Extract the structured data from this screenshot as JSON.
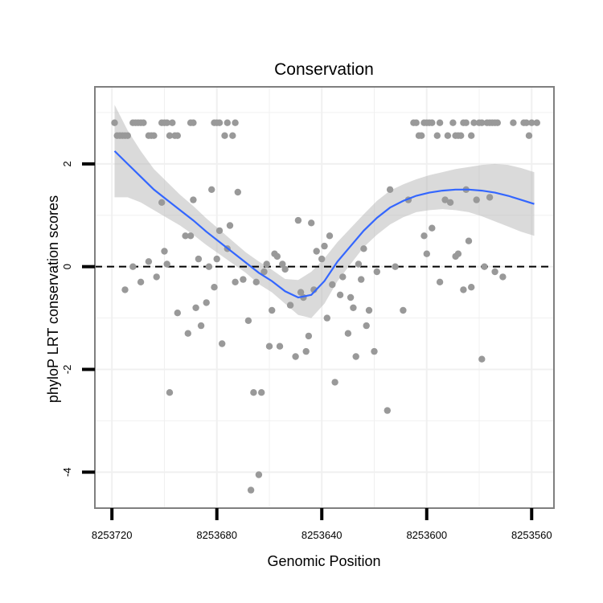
{
  "chart_data": {
    "type": "scatter",
    "title": "Conservation",
    "xlabel": "Genomic Position",
    "ylabel": "phyloP LRT conservation scores",
    "x_reversed": true,
    "xlim": [
      8253726.5,
      8253551.5
    ],
    "ylim": [
      -4.7,
      3.5
    ],
    "x_ticks": [
      8253720,
      8253680,
      8253640,
      8253600,
      8253560
    ],
    "x_tick_labels": [
      "8253720",
      "8253680",
      "8253640",
      "8253600",
      "8253560"
    ],
    "y_ticks": [
      -4,
      -2,
      0,
      2
    ],
    "y_tick_labels": [
      "-4",
      "-2",
      "0",
      "2"
    ],
    "grid": true,
    "reference_line": {
      "y": 0,
      "style": "dashed"
    },
    "colors": {
      "points": "#999999",
      "smooth_line": "#3366ff",
      "confidence_band": "#bbbbbb",
      "panel_border": "#7f7f7f",
      "grid": "#f0f0f0"
    },
    "series": [
      {
        "type": "scatter",
        "points": [
          [
            8253719,
            2.8
          ],
          [
            8253718,
            2.55
          ],
          [
            8253717,
            2.55
          ],
          [
            8253716,
            2.55
          ],
          [
            8253715,
            2.55
          ],
          [
            8253714,
            2.55
          ],
          [
            8253712,
            2.8
          ],
          [
            8253711,
            2.8
          ],
          [
            8253710,
            2.8
          ],
          [
            8253709,
            2.8
          ],
          [
            8253708,
            2.8
          ],
          [
            8253706,
            2.55
          ],
          [
            8253705,
            2.55
          ],
          [
            8253704,
            2.55
          ],
          [
            8253701,
            2.8
          ],
          [
            8253700,
            2.8
          ],
          [
            8253699,
            2.8
          ],
          [
            8253698,
            2.55
          ],
          [
            8253697,
            2.8
          ],
          [
            8253696,
            2.55
          ],
          [
            8253695,
            2.55
          ],
          [
            8253690,
            2.8
          ],
          [
            8253689,
            2.8
          ],
          [
            8253681,
            2.8
          ],
          [
            8253680,
            2.8
          ],
          [
            8253679,
            2.8
          ],
          [
            8253677,
            2.55
          ],
          [
            8253676,
            2.8
          ],
          [
            8253674,
            2.55
          ],
          [
            8253673,
            2.8
          ],
          [
            8253605,
            2.8
          ],
          [
            8253604,
            2.8
          ],
          [
            8253603,
            2.55
          ],
          [
            8253602,
            2.55
          ],
          [
            8253601,
            2.8
          ],
          [
            8253600,
            2.8
          ],
          [
            8253599,
            2.8
          ],
          [
            8253598,
            2.8
          ],
          [
            8253596,
            2.55
          ],
          [
            8253595,
            2.8
          ],
          [
            8253592,
            2.55
          ],
          [
            8253590,
            2.8
          ],
          [
            8253589,
            2.55
          ],
          [
            8253588,
            2.55
          ],
          [
            8253587,
            2.55
          ],
          [
            8253586,
            2.8
          ],
          [
            8253585,
            2.8
          ],
          [
            8253583,
            2.55
          ],
          [
            8253582,
            2.8
          ],
          [
            8253580,
            2.8
          ],
          [
            8253579,
            2.8
          ],
          [
            8253577,
            2.8
          ],
          [
            8253576,
            2.8
          ],
          [
            8253575,
            2.8
          ],
          [
            8253574,
            2.8
          ],
          [
            8253573,
            2.8
          ],
          [
            8253567,
            2.8
          ],
          [
            8253563,
            2.8
          ],
          [
            8253562,
            2.8
          ],
          [
            8253561,
            2.55
          ],
          [
            8253560,
            2.8
          ],
          [
            8253558,
            2.8
          ],
          [
            8253715,
            -0.45
          ],
          [
            8253712,
            0.0
          ],
          [
            8253709,
            -0.3
          ],
          [
            8253706,
            0.1
          ],
          [
            8253703,
            -0.2
          ],
          [
            8253701,
            1.25
          ],
          [
            8253700,
            0.3
          ],
          [
            8253699,
            0.05
          ],
          [
            8253698,
            -2.45
          ],
          [
            8253695,
            -0.9
          ],
          [
            8253692,
            0.6
          ],
          [
            8253691,
            -1.3
          ],
          [
            8253690,
            0.6
          ],
          [
            8253689,
            1.3
          ],
          [
            8253688,
            -0.8
          ],
          [
            8253687,
            0.15
          ],
          [
            8253686,
            -1.15
          ],
          [
            8253684,
            -0.7
          ],
          [
            8253683,
            0.0
          ],
          [
            8253682,
            1.5
          ],
          [
            8253681,
            -0.4
          ],
          [
            8253680,
            0.15
          ],
          [
            8253679,
            0.7
          ],
          [
            8253678,
            -1.5
          ],
          [
            8253676,
            0.35
          ],
          [
            8253675,
            0.8
          ],
          [
            8253673,
            -0.3
          ],
          [
            8253672,
            1.45
          ],
          [
            8253670,
            -0.25
          ],
          [
            8253668,
            -1.05
          ],
          [
            8253667,
            -4.35
          ],
          [
            8253666,
            -2.45
          ],
          [
            8253665,
            -0.3
          ],
          [
            8253664,
            -4.05
          ],
          [
            8253663,
            -2.45
          ],
          [
            8253662,
            -0.1
          ],
          [
            8253661,
            0.05
          ],
          [
            8253660,
            -1.55
          ],
          [
            8253659,
            -0.85
          ],
          [
            8253658,
            0.25
          ],
          [
            8253657,
            0.2
          ],
          [
            8253656,
            -1.55
          ],
          [
            8253655,
            0.05
          ],
          [
            8253654,
            -0.05
          ],
          [
            8253652,
            -0.75
          ],
          [
            8253650,
            -1.75
          ],
          [
            8253649,
            0.9
          ],
          [
            8253648,
            -0.5
          ],
          [
            8253647,
            -0.6
          ],
          [
            8253646,
            -1.65
          ],
          [
            8253645,
            -1.35
          ],
          [
            8253644,
            0.85
          ],
          [
            8253643,
            -0.45
          ],
          [
            8253642,
            0.3
          ],
          [
            8253640,
            0.15
          ],
          [
            8253639,
            0.4
          ],
          [
            8253638,
            -1.0
          ],
          [
            8253637,
            0.6
          ],
          [
            8253636,
            -0.35
          ],
          [
            8253635,
            -2.25
          ],
          [
            8253633,
            -0.55
          ],
          [
            8253632,
            -0.2
          ],
          [
            8253630,
            -1.3
          ],
          [
            8253629,
            -0.6
          ],
          [
            8253628,
            -0.8
          ],
          [
            8253627,
            -1.75
          ],
          [
            8253626,
            0.05
          ],
          [
            8253625,
            -0.25
          ],
          [
            8253624,
            0.35
          ],
          [
            8253623,
            -1.15
          ],
          [
            8253622,
            -0.85
          ],
          [
            8253620,
            -1.65
          ],
          [
            8253619,
            -0.1
          ],
          [
            8253615,
            -2.8
          ],
          [
            8253614,
            1.5
          ],
          [
            8253612,
            0.0
          ],
          [
            8253609,
            -0.85
          ],
          [
            8253607,
            1.3
          ],
          [
            8253601,
            0.6
          ],
          [
            8253600,
            0.25
          ],
          [
            8253598,
            0.75
          ],
          [
            8253595,
            -0.3
          ],
          [
            8253593,
            1.3
          ],
          [
            8253591,
            1.25
          ],
          [
            8253589,
            0.2
          ],
          [
            8253588,
            0.25
          ],
          [
            8253586,
            -0.45
          ],
          [
            8253585,
            1.5
          ],
          [
            8253584,
            0.5
          ],
          [
            8253583,
            -0.4
          ],
          [
            8253581,
            1.3
          ],
          [
            8253579,
            -1.8
          ],
          [
            8253578,
            0.0
          ],
          [
            8253576,
            1.35
          ],
          [
            8253574,
            -0.1
          ],
          [
            8253571,
            -0.2
          ]
        ]
      },
      {
        "type": "smooth",
        "x": [
          8253719,
          8253714,
          8253709,
          8253704,
          8253699,
          8253694,
          8253689,
          8253684,
          8253679,
          8253674,
          8253669,
          8253664,
          8253659,
          8253654,
          8253649,
          8253644,
          8253639,
          8253634,
          8253629,
          8253624,
          8253619,
          8253614,
          8253609,
          8253604,
          8253599,
          8253594,
          8253589,
          8253584,
          8253579,
          8253574,
          8253569,
          8253564,
          8253559
        ],
        "y": [
          2.25,
          2.0,
          1.75,
          1.5,
          1.3,
          1.1,
          0.9,
          0.68,
          0.48,
          0.28,
          0.08,
          -0.12,
          -0.28,
          -0.48,
          -0.6,
          -0.55,
          -0.28,
          0.1,
          0.4,
          0.7,
          0.95,
          1.15,
          1.28,
          1.38,
          1.44,
          1.48,
          1.5,
          1.5,
          1.48,
          1.44,
          1.38,
          1.3,
          1.22
        ],
        "lower": [
          1.35,
          1.35,
          1.25,
          1.1,
          0.95,
          0.8,
          0.62,
          0.42,
          0.24,
          0.06,
          -0.12,
          -0.34,
          -0.5,
          -0.72,
          -0.94,
          -1.0,
          -0.72,
          -0.28,
          0.05,
          0.38,
          0.62,
          0.82,
          0.96,
          1.06,
          1.1,
          1.12,
          1.1,
          1.06,
          0.98,
          0.88,
          0.78,
          0.68,
          0.6
        ],
        "upper": [
          3.15,
          2.65,
          2.25,
          1.9,
          1.65,
          1.4,
          1.18,
          0.94,
          0.72,
          0.5,
          0.28,
          0.1,
          -0.06,
          -0.24,
          -0.26,
          -0.1,
          0.16,
          0.48,
          0.75,
          1.02,
          1.28,
          1.48,
          1.6,
          1.7,
          1.78,
          1.84,
          1.9,
          1.94,
          1.98,
          2.0,
          1.98,
          1.92,
          1.84
        ]
      }
    ]
  }
}
